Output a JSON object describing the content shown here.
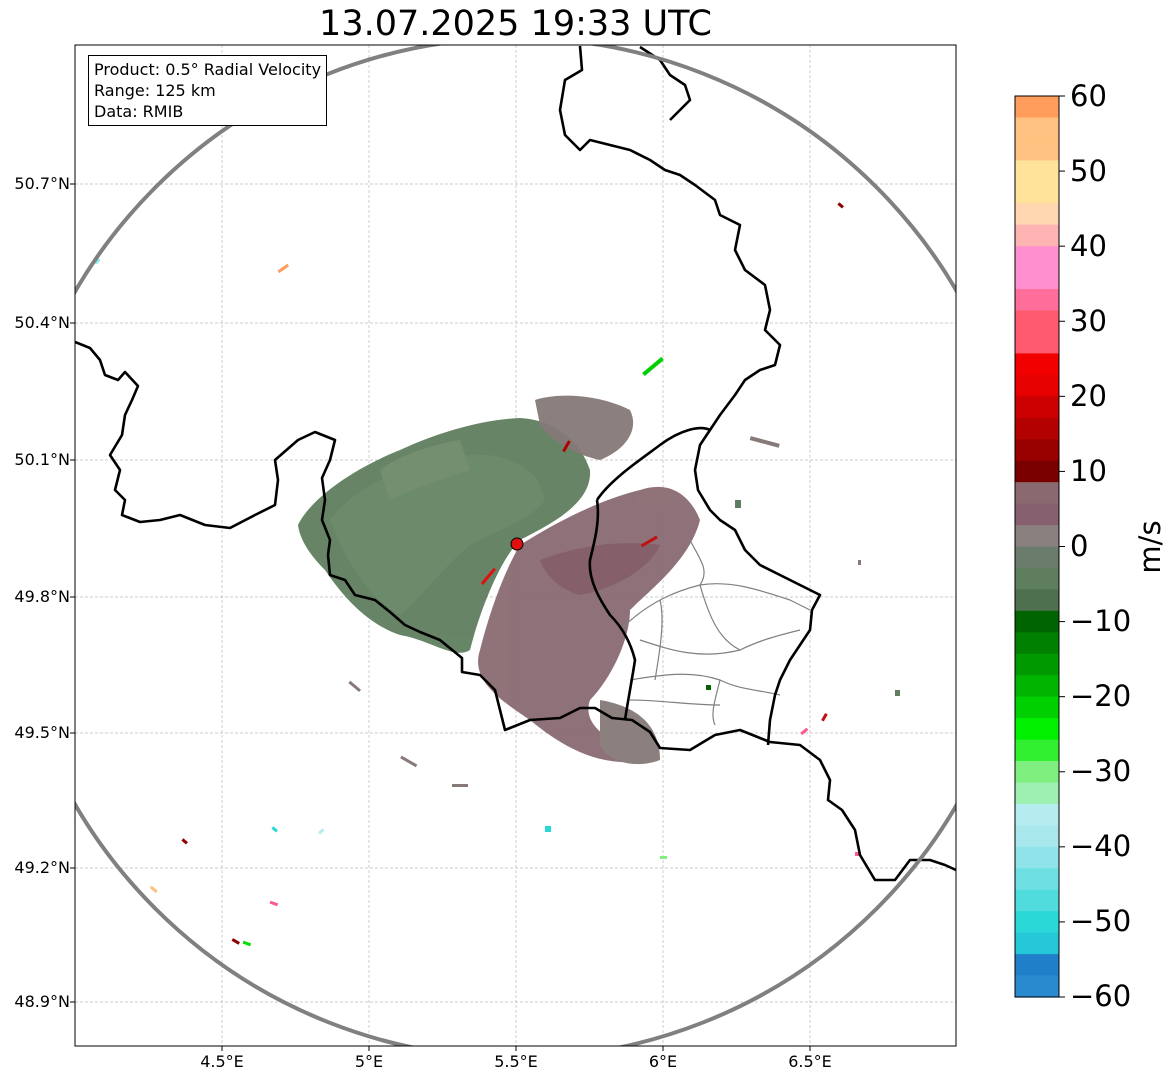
{
  "title": "13.07.2025 19:33 UTC",
  "info": {
    "product": "Product: 0.5° Radial Velocity",
    "range": "Range: 125 km",
    "source": "Data: RMIB"
  },
  "axes": {
    "lat_labels": [
      "50.7°N",
      "50.4°N",
      "50.1°N",
      "49.8°N",
      "49.5°N",
      "49.2°N",
      "48.9°N"
    ],
    "lon_labels": [
      "4.5°E",
      "5°E",
      "5.5°E",
      "6°E",
      "6.5°E"
    ]
  },
  "colorbar": {
    "unit": "m/s",
    "ticks": [
      "60",
      "50",
      "40",
      "30",
      "20",
      "10",
      "0",
      "−10",
      "−20",
      "−30",
      "−40",
      "−50",
      "−60"
    ],
    "range": [
      -60,
      60
    ],
    "colors": {
      "orange": "#ff9d5c",
      "light_orange": "#ffc17f",
      "yellow": "#ffe39a",
      "pink": "#ff8fcf",
      "rose": "#ff5a6e",
      "red": "#f20000",
      "dark_red": "#7a0000",
      "brown_gray": "#8a6a70",
      "gray": "#8a8080",
      "green_gray": "#5e7e5e",
      "dark_green": "#006400",
      "green": "#00d000",
      "light_green": "#7ff07f",
      "light_cyan": "#b5ecf0",
      "cyan": "#2ad8d8",
      "blue": "#1f7fc8"
    }
  },
  "radar_site": {
    "label": "radar-site",
    "color": "#e01010"
  }
}
